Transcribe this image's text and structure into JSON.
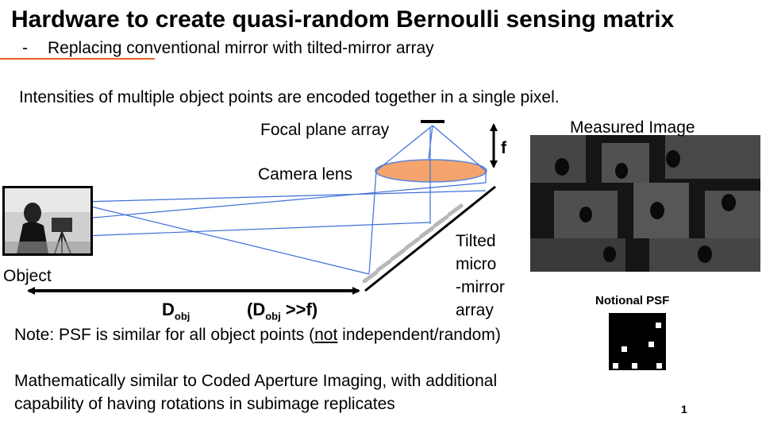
{
  "title": "Hardware to create quasi-random Bernoulli sensing matrix",
  "bullet": {
    "dash": "-",
    "text": "Replacing conventional mirror with tilted-mirror array"
  },
  "intro": "Intensities of multiple object points are encoded together in a single pixel.",
  "diagram": {
    "focal_plane_label": "Focal plane array",
    "f_label": "f",
    "camera_lens_label": "Camera lens",
    "tilted_1": "Tilted",
    "tilted_2": "micro",
    "tilted_3": "-mirror",
    "tilted_4": "array",
    "object_label": "Object",
    "d_main": "D",
    "d_sub": "obj",
    "cond_open": "(D",
    "cond_sub": "obj",
    "cond_close": " >>f)",
    "measured_label": "Measured Image",
    "psf_label": "Notional PSF"
  },
  "note": {
    "before": "Note: PSF is similar for all object points (",
    "underlined": "not",
    "after": " independent/random)"
  },
  "math_line1": "Mathematically similar to Coded Aperture Imaging, with additional",
  "math_line2": "capability of having rotations in subimage replicates",
  "page_number": "1",
  "colors": {
    "ray": "#3d6fd8",
    "lens_fill": "#f4a46c",
    "accent": "#e8622a",
    "mirror_segment": "#b8b8b8"
  }
}
